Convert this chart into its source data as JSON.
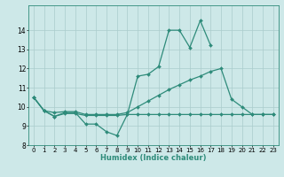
{
  "xlabel": "Humidex (Indice chaleur)",
  "x_values": [
    0,
    1,
    2,
    3,
    4,
    5,
    6,
    7,
    8,
    9,
    10,
    11,
    12,
    13,
    14,
    15,
    16,
    17,
    18,
    19,
    20,
    21,
    22,
    23
  ],
  "line_jagged": [
    10.5,
    9.8,
    9.5,
    9.7,
    9.7,
    9.1,
    9.1,
    8.7,
    8.5,
    9.6,
    11.6,
    11.7,
    12.1,
    14.0,
    14.0,
    13.1,
    14.5,
    13.2,
    null,
    null,
    null,
    null,
    null,
    null
  ],
  "line_flat": [
    10.5,
    9.8,
    9.5,
    9.65,
    9.65,
    9.55,
    9.55,
    9.55,
    9.55,
    9.6,
    9.6,
    9.6,
    9.6,
    9.6,
    9.6,
    9.6,
    9.6,
    9.6,
    9.6,
    9.6,
    9.6,
    9.6,
    9.6,
    9.6
  ],
  "line_rising": [
    10.5,
    9.8,
    9.7,
    9.75,
    9.75,
    9.6,
    9.6,
    9.6,
    9.6,
    9.7,
    10.0,
    10.3,
    10.6,
    10.9,
    11.15,
    11.4,
    11.6,
    11.85,
    12.0,
    10.4,
    10.0,
    9.6,
    9.6,
    9.6
  ],
  "color": "#2e8b7a",
  "bg_color": "#cde8e8",
  "grid_color": "#aacccc",
  "ylim_min": 8,
  "ylim_max": 15,
  "yticks": [
    8,
    9,
    10,
    11,
    12,
    13,
    14
  ],
  "markersize": 2.0,
  "linewidth": 0.9,
  "tick_fontsize": 5.0,
  "xlabel_fontsize": 6.0
}
